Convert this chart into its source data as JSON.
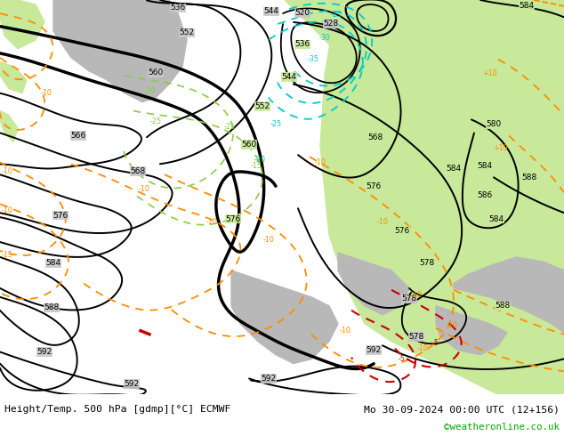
{
  "title_left": "Height/Temp. 500 hPa [gdmp][°C] ECMWF",
  "title_right": "Mo 30-09-2024 00:00 UTC (12+156)",
  "copyright": "©weatheronline.co.uk",
  "sea_color": "#c8c8c8",
  "land_green": "#c8e89a",
  "land_grey": "#b0b0b0",
  "contour_color": "#000000",
  "temp_orange_color": "#ff8c00",
  "temp_cyan_color": "#00cccc",
  "temp_green_color": "#88cc44",
  "footer_bg": "#ffffff"
}
